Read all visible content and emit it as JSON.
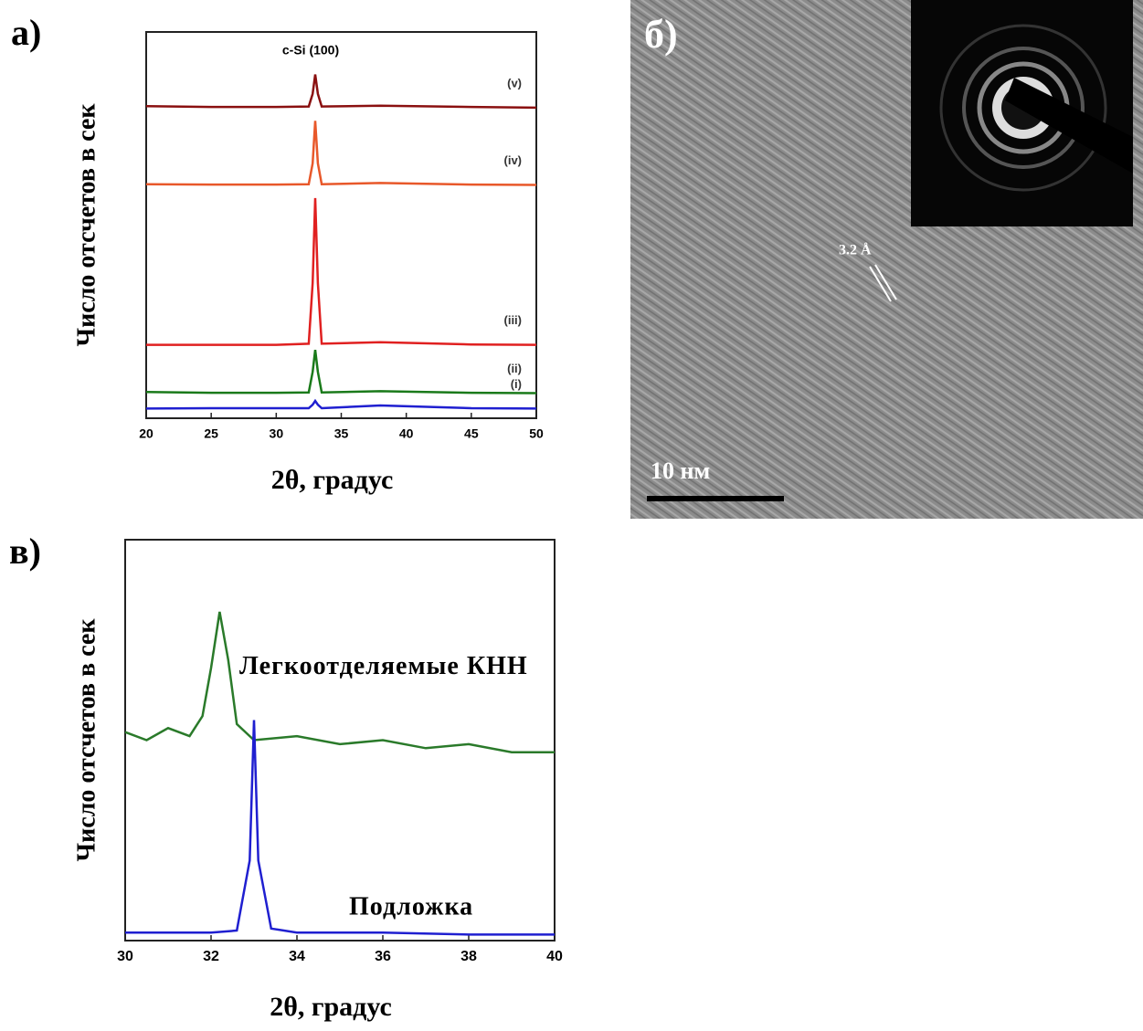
{
  "chart_data": [
    {
      "type": "line",
      "panel_label": "а)",
      "annotation": "c-Si (100)",
      "y_label": "Число отсчетов в сек",
      "x_label": "2θ, градус",
      "x": [
        20,
        25,
        30,
        32.5,
        32.8,
        33,
        33.2,
        33.5,
        38,
        45,
        50
      ],
      "xlim": [
        20,
        50
      ],
      "xticks": [
        20,
        25,
        30,
        35,
        40,
        45,
        50
      ],
      "ylim": [
        0,
        100
      ],
      "series": [
        {
          "name": "(i)",
          "color": "#1f1fd0",
          "values": [
            2.5,
            2.6,
            2.6,
            2.6,
            3.5,
            4.5,
            3.5,
            2.6,
            3.3,
            2.6,
            2.5
          ]
        },
        {
          "name": "(ii)",
          "color": "#1a7a1a",
          "values": [
            6.8,
            6.6,
            6.6,
            6.7,
            12,
            17.7,
            12,
            6.7,
            7,
            6.6,
            6.5
          ]
        },
        {
          "name": "(iii)",
          "color": "#e02020",
          "values": [
            19,
            19,
            19,
            19.3,
            35,
            57,
            35,
            19.3,
            19.7,
            19.1,
            19
          ]
        },
        {
          "name": "(iv)",
          "color": "#e8582a",
          "values": [
            60.6,
            60.5,
            60.5,
            60.6,
            66,
            77,
            66,
            60.6,
            60.9,
            60.5,
            60.4
          ]
        },
        {
          "name": "(v)",
          "color": "#8a1010",
          "values": [
            80.8,
            80.6,
            80.6,
            80.7,
            84,
            89,
            84,
            80.7,
            80.9,
            80.6,
            80.4
          ]
        }
      ]
    },
    {
      "type": "line",
      "panel_label": "в)",
      "y_label": "Число отсчетов в сек",
      "x_label": "2θ, градус",
      "xlim": [
        30,
        40
      ],
      "xticks": [
        30,
        32,
        34,
        36,
        38,
        40
      ],
      "ylim": [
        0,
        100
      ],
      "series": [
        {
          "name": "Легкоотделяемые КНН",
          "color": "#2a7a2a",
          "x": [
            30,
            30.5,
            31,
            31.5,
            31.8,
            32,
            32.2,
            32.4,
            32.6,
            33,
            34,
            35,
            36,
            37,
            38,
            39,
            40
          ],
          "values": [
            52,
            50,
            53,
            51,
            56,
            68,
            82,
            70,
            54,
            50,
            51,
            49,
            50,
            48,
            49,
            47,
            47
          ]
        },
        {
          "name": "Подложка",
          "color": "#1f1fd0",
          "x": [
            30,
            31,
            32,
            32.6,
            32.9,
            33,
            33.1,
            33.4,
            34,
            36,
            38,
            40
          ],
          "values": [
            2,
            2,
            2,
            2.5,
            20,
            55,
            20,
            3,
            2,
            2,
            1.5,
            1.5
          ]
        }
      ]
    }
  ],
  "image": {
    "panel_label": "б)",
    "lattice_label": "3.2 Å",
    "scale_label": "10 нм"
  }
}
